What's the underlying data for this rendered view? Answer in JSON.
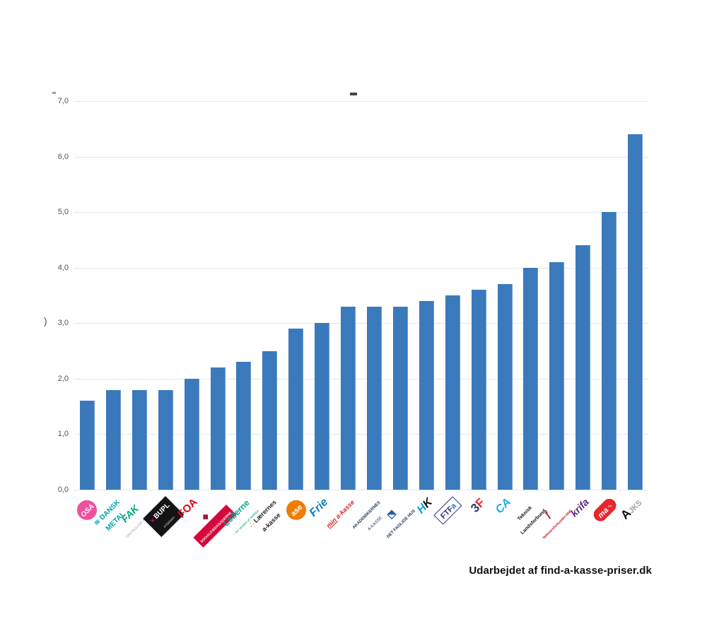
{
  "chart_data": {
    "type": "bar",
    "title": "",
    "cropped_title_fragment": "-",
    "ylabel_fragment": ")",
    "categories": [
      "OSA",
      "Dansk Metal",
      "FAK - Din Faglige A-kasse",
      "BUPL A-kassen",
      "FOA",
      "Socialpædagogerne",
      "Lederne",
      "Lærernes a-kasse",
      "Ase",
      "Frie",
      "Min A-kasse",
      "Akademikernes A-kasse",
      "Det Faglige Hus",
      "HK",
      "FTFa",
      "3F",
      "CA",
      "Teknisk Landsforbund",
      "Fødevareforbundet NNF",
      "Krifa",
      "MA",
      "AJKS"
    ],
    "values": [
      1.6,
      1.8,
      1.8,
      1.8,
      2.0,
      2.2,
      2.3,
      2.5,
      2.9,
      3.0,
      3.3,
      3.3,
      3.3,
      3.4,
      3.5,
      3.6,
      3.7,
      4.0,
      4.1,
      4.4,
      5.0,
      6.4
    ],
    "yticks": [
      "0,0",
      "1,0",
      "2,0",
      "3,0",
      "4,0",
      "5,0",
      "6,0",
      "7,0"
    ],
    "ylim": [
      0,
      7
    ],
    "grid": true,
    "legend": false,
    "bar_color": "#3A7ABC",
    "grid_color": "#DEE8F4",
    "tick_color": "#44546A"
  },
  "footer": {
    "attribution": "Udarbejdet af find-a-kasse-priser.dk"
  },
  "logos": [
    {
      "name": "OSA",
      "shape": "circle",
      "bg": "#F0509D",
      "lines": [
        {
          "parts": [
            {
              "t": "OSA",
              "c": "#FFFFFF",
              "s": 10,
              "b": 1,
              "i": 1
            }
          ]
        }
      ]
    },
    {
      "name": "Dansk Metal",
      "lines": [
        {
          "parts": [
            {
              "t": "≋ ",
              "c": "#00B5C3",
              "s": 10,
              "b": 1
            },
            {
              "t": "DANSK",
              "c": "#009FB0",
              "s": 10,
              "b": 1
            }
          ]
        },
        {
          "parts": [
            {
              "t": "METAL",
              "c": "#009FB0",
              "s": 10,
              "b": 1
            }
          ]
        }
      ]
    },
    {
      "name": "FAK - Din Faglige A-kasse",
      "lines": [
        {
          "parts": [
            {
              "t": "FAK",
              "c": "#00A87E",
              "s": 14,
              "b": 1,
              "i": 1
            }
          ]
        },
        {
          "parts": [
            {
              "t": "DIN FAGLIGE A-KASSE",
              "c": "#8FA8A0",
              "s": 5
            }
          ]
        }
      ]
    },
    {
      "name": "BUPL A-kassen",
      "bg": "#141414",
      "p": "1px 5px",
      "lines": [
        {
          "parts": [
            {
              "t": "✕ ",
              "c": "#E6007E",
              "s": 7,
              "b": 1
            },
            {
              "t": "BUPL",
              "c": "#FFFFFF",
              "s": 10,
              "b": 1
            }
          ]
        },
        {
          "parts": [
            {
              "t": "a-kassen",
              "c": "#CFCFCF",
              "s": 5
            }
          ]
        }
      ]
    },
    {
      "name": "FOA",
      "lines": [
        {
          "parts": [
            {
              "t": "FOA",
              "c": "#E2001A",
              "s": 15,
              "b": 1
            }
          ]
        }
      ]
    },
    {
      "name": "Socialpædagogerne",
      "lines": [
        {
          "parts": [
            {
              "t": "❖",
              "c": "#8D1B3D",
              "s": 12,
              "b": 1
            }
          ]
        },
        {
          "bg": "#D6083B",
          "p": "1px 3px",
          "parts": [
            {
              "t": "SOCIALPÆDAGOGERNE",
              "c": "#FFFFFF",
              "s": 5,
              "b": 1
            }
          ]
        }
      ]
    },
    {
      "name": "Lederne",
      "lines": [
        {
          "parts": [
            {
              "t": "Lederne",
              "c": "#00A88E",
              "s": 12,
              "b": 1
            }
          ]
        },
        {
          "parts": [
            {
              "t": "– en verden af ledelse",
              "c": "#00A88E",
              "s": 5
            }
          ]
        }
      ]
    },
    {
      "name": "Lærernes a-kasse",
      "lines": [
        {
          "parts": [
            {
              "t": "∴ ",
              "c": "#F59C00",
              "s": 10,
              "b": 1
            },
            {
              "t": "Lærernes",
              "c": "#222222",
              "s": 9,
              "b": 1
            }
          ]
        },
        {
          "parts": [
            {
              "t": "a-kasse",
              "c": "#222222",
              "s": 9,
              "b": 1
            }
          ]
        }
      ]
    },
    {
      "name": "Ase",
      "shape": "circle",
      "bg": "#F07D00",
      "lines": [
        {
          "parts": [
            {
              "t": "ase",
              "c": "#FFFFFF",
              "s": 11,
              "b": 1
            }
          ]
        }
      ]
    },
    {
      "name": "Frie",
      "lines": [
        {
          "parts": [
            {
              "t": "Frie",
              "c": "#0E7DC2",
              "s": 16,
              "b": 1,
              "i": 1
            }
          ]
        }
      ]
    },
    {
      "name": "Min A-kasse",
      "lines": [
        {
          "parts": [
            {
              "t": "min",
              "c": "#D2232A",
              "s": 9,
              "b": 1,
              "i": 1,
              "u": 1
            },
            {
              "t": " a-kasse",
              "c": "#D2232A",
              "s": 9,
              "b": 1,
              "i": 1
            }
          ]
        }
      ]
    },
    {
      "name": "Akademikernes A-kasse",
      "lines": [
        {
          "parts": [
            {
              "t": "AKADEMIKERNES",
              "c": "#23395B",
              "s": 6,
              "b": 1
            }
          ]
        },
        {
          "parts": [
            {
              "t": "A-KASSE",
              "c": "#23395B",
              "s": 6
            }
          ]
        }
      ]
    },
    {
      "name": "Det Faglige Hus",
      "lines": [
        {
          "parts": [
            {
              "t": "⬔",
              "c": "#1F5FA8",
              "s": 12,
              "b": 1
            }
          ]
        },
        {
          "parts": [
            {
              "t": "DET FAGLIGE HUS",
              "c": "#1D2F50",
              "s": 6,
              "b": 1
            }
          ]
        }
      ]
    },
    {
      "name": "HK",
      "lines": [
        {
          "parts": [
            {
              "t": "H",
              "c": "#00A0DF",
              "s": 16,
              "b": 1,
              "i": 1
            },
            {
              "t": "K",
              "c": "#101010",
              "s": 16,
              "b": 1,
              "i": 1
            }
          ]
        }
      ]
    },
    {
      "name": "FTFa",
      "bd": "1.5px solid #27348B",
      "p": "0 5px",
      "lines": [
        {
          "parts": [
            {
              "t": "FTF",
              "c": "#27348B",
              "s": 11,
              "b": 1
            },
            {
              "t": "a",
              "c": "#1B75BB",
              "s": 11,
              "b": 1
            }
          ]
        }
      ]
    },
    {
      "name": "3F",
      "lines": [
        {
          "parts": [
            {
              "t": "3",
              "c": "#23356E",
              "s": 17,
              "b": 1
            },
            {
              "t": "F",
              "c": "#E52330",
              "s": 17,
              "b": 1
            }
          ]
        }
      ]
    },
    {
      "name": "CA",
      "lines": [
        {
          "parts": [
            {
              "t": "CA",
              "c": "#1CAEE5",
              "s": 16,
              "b": 1,
              "i": 1
            }
          ]
        }
      ]
    },
    {
      "name": "Teknisk Landsforbund",
      "lines": [
        {
          "parts": [
            {
              "t": "Teknisk",
              "c": "#111111",
              "s": 7,
              "b": 1
            }
          ]
        },
        {
          "parts": [
            {
              "t": "Landsforbund",
              "c": "#111111",
              "s": 7,
              "b": 1
            }
          ]
        }
      ]
    },
    {
      "name": "Fødevareforbundet NNF",
      "lines": [
        {
          "parts": [
            {
              "t": "ƒ",
              "c": "#C51A2D",
              "s": 14,
              "b": 1,
              "i": 1
            }
          ]
        },
        {
          "parts": [
            {
              "t": "fødevareforbundet NNF",
              "c": "#C51A2D",
              "s": 5,
              "b": 1
            }
          ]
        }
      ]
    },
    {
      "name": "Krifa",
      "lines": [
        {
          "parts": [
            {
              "t": "krifa",
              "c": "#5F2383",
              "s": 14,
              "b": 1,
              "i": 1
            }
          ]
        }
      ]
    },
    {
      "name": "MA",
      "bg": "#E8262D",
      "r": "12px",
      "p": "1px 6px",
      "lines": [
        {
          "parts": [
            {
              "t": "ma",
              "c": "#FFFFFF",
              "s": 11,
              "b": 1,
              "i": 1
            },
            {
              "t": " ✎",
              "c": "#C9CFD6",
              "s": 8
            }
          ]
        }
      ]
    },
    {
      "name": "AJKS",
      "lines": [
        {
          "parts": [
            {
              "t": "A",
              "c": "#101010",
              "s": 17,
              "b": 1
            },
            {
              "t": "JKS",
              "c": "#9AA3AD",
              "s": 11,
              "b": 1
            }
          ]
        }
      ]
    }
  ]
}
